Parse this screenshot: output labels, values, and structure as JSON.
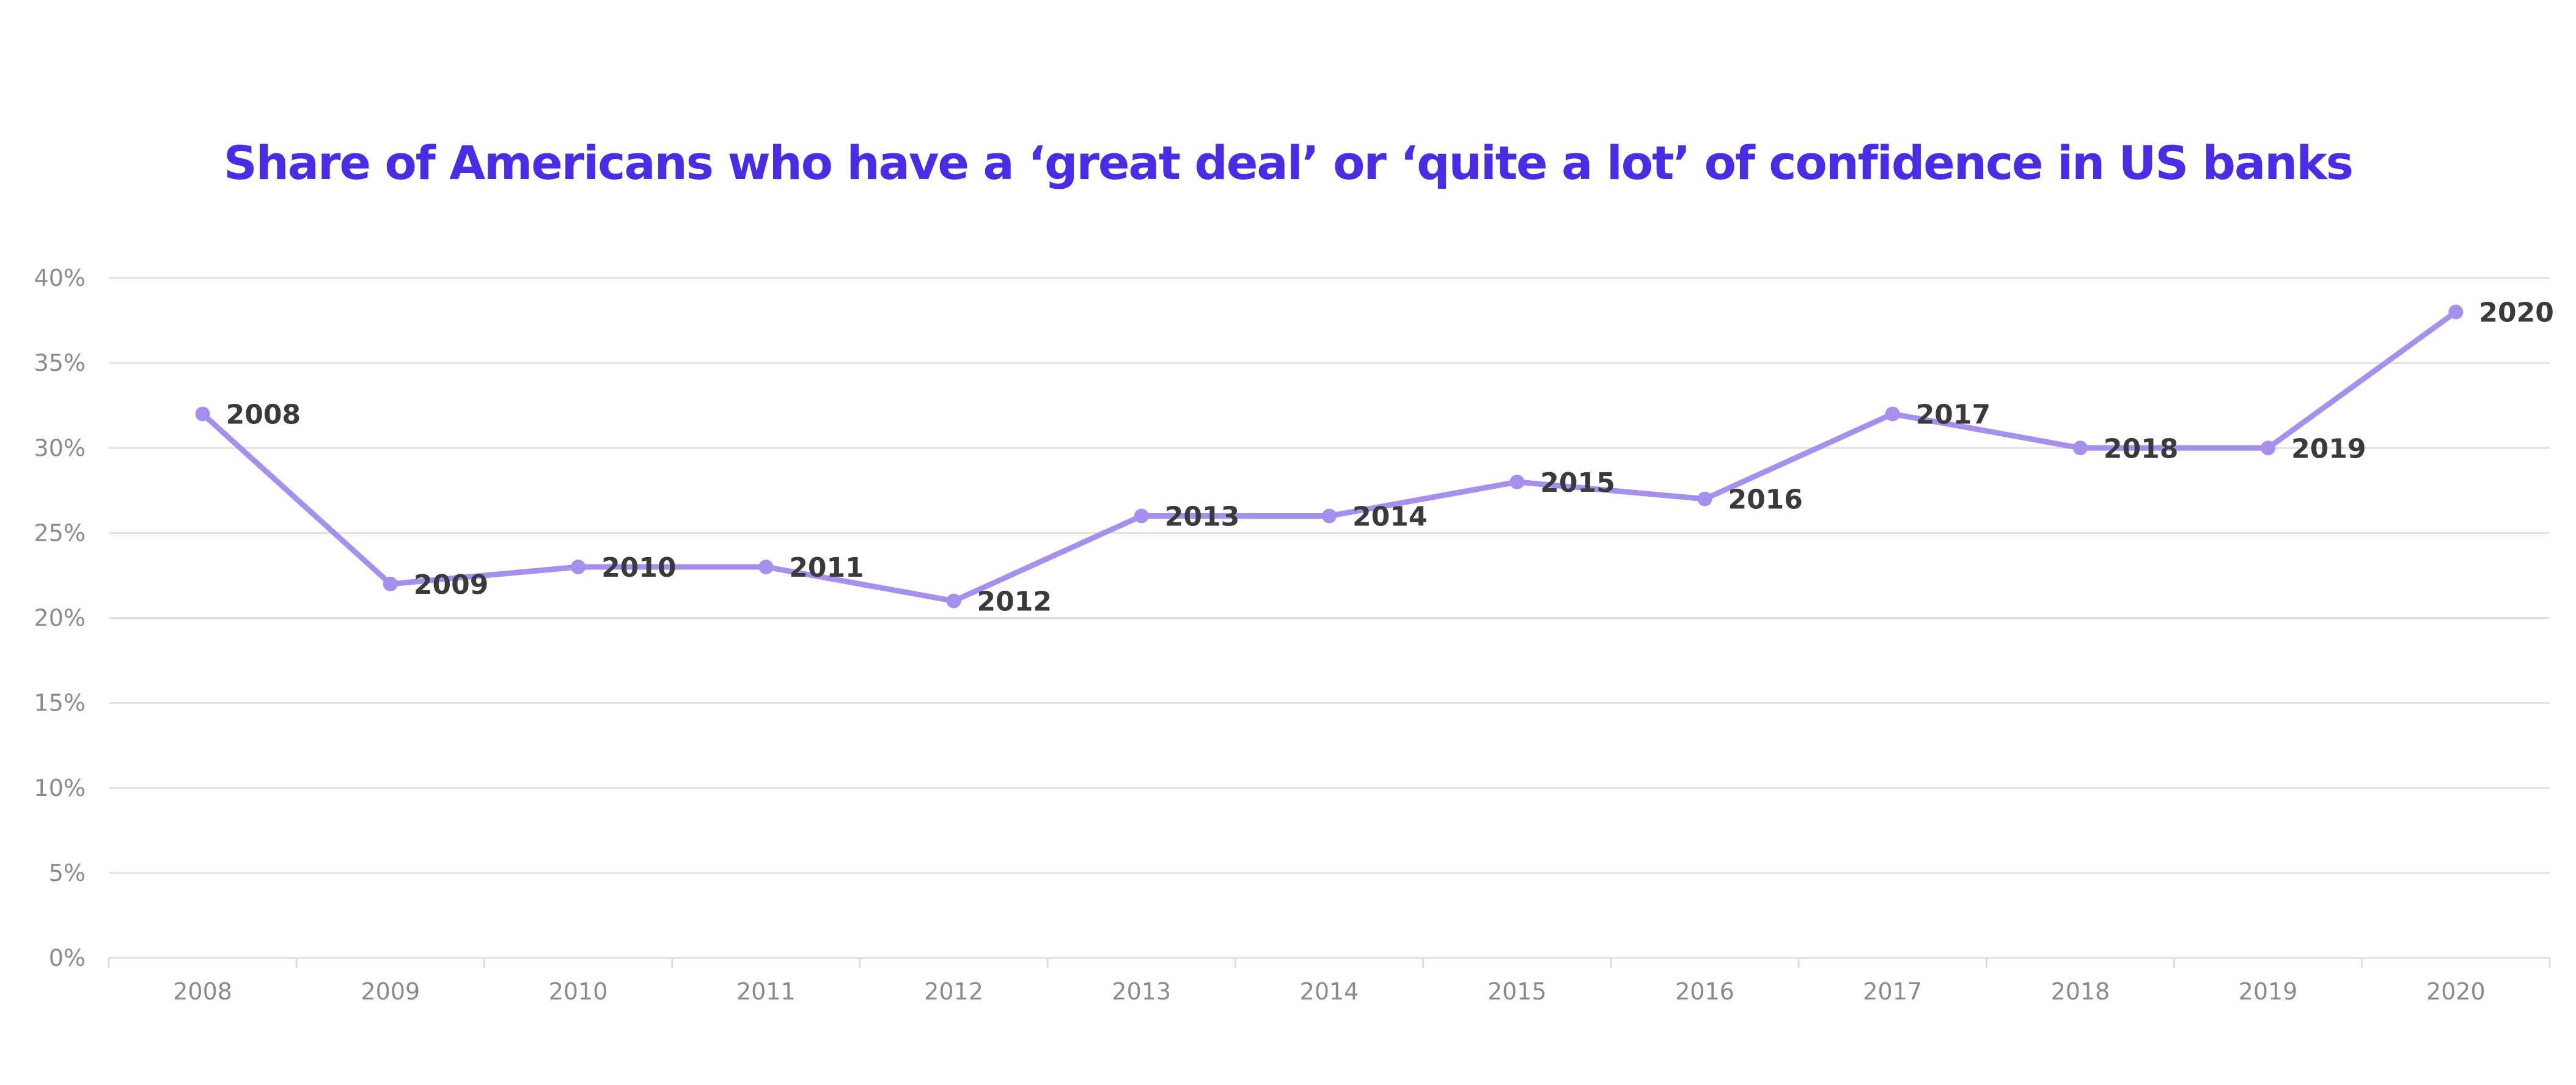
{
  "chart_data": {
    "type": "line",
    "title": "Share of Americans who have a ‘great deal’ or ‘quite a lot’ of confidence in US banks",
    "xlabel": "",
    "ylabel": "",
    "ylim": [
      0,
      40
    ],
    "yticks": [
      "0%",
      "5%",
      "10%",
      "15%",
      "20%",
      "25%",
      "30%",
      "35%",
      "40%"
    ],
    "ytick_values": [
      0,
      5,
      10,
      15,
      20,
      25,
      30,
      35,
      40
    ],
    "grid": true,
    "legend": "none",
    "categories": [
      "2008",
      "2009",
      "2010",
      "2011",
      "2012",
      "2013",
      "2014",
      "2015",
      "2016",
      "2017",
      "2018",
      "2019",
      "2020"
    ],
    "series": [
      {
        "values": [
          32,
          22,
          23,
          23,
          21,
          26,
          26,
          28,
          27,
          32,
          30,
          30,
          38
        ],
        "point_labels": [
          "2008",
          "2009",
          "2010",
          "2011",
          "2012",
          "2013",
          "2014",
          "2015",
          "2016",
          "2017",
          "2018",
          "2019",
          "2020"
        ]
      }
    ],
    "colors": {
      "title": "#4a2be6",
      "line": "#a690ee",
      "point": "#a690ee"
    }
  }
}
